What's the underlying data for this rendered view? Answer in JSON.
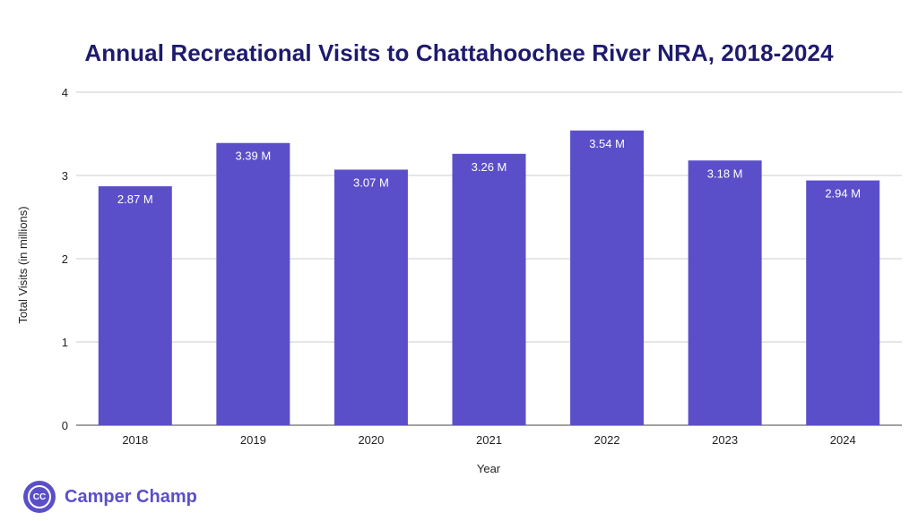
{
  "chart_data": {
    "type": "bar",
    "title": "Annual Recreational Visits to Chattahoochee River NRA, 2018-2024",
    "xlabel": "Year",
    "ylabel": "Total Visits (in millions)",
    "categories": [
      "2018",
      "2019",
      "2020",
      "2021",
      "2022",
      "2023",
      "2024"
    ],
    "values": [
      2.87,
      3.39,
      3.07,
      3.26,
      3.54,
      3.18,
      2.94
    ],
    "data_labels": [
      "2.87 M",
      "3.39 M",
      "3.07 M",
      "3.26 M",
      "3.54 M",
      "3.18 M",
      "2.94 M"
    ],
    "ylim": [
      0,
      4
    ],
    "yticks": [
      "0",
      "1",
      "2",
      "3",
      "4"
    ],
    "grid": true,
    "legend": "none",
    "bar_color": "#5b4fc9"
  },
  "brand": {
    "logo_text": "CC",
    "name": "Camper Champ",
    "color": "#5b4fc9"
  }
}
